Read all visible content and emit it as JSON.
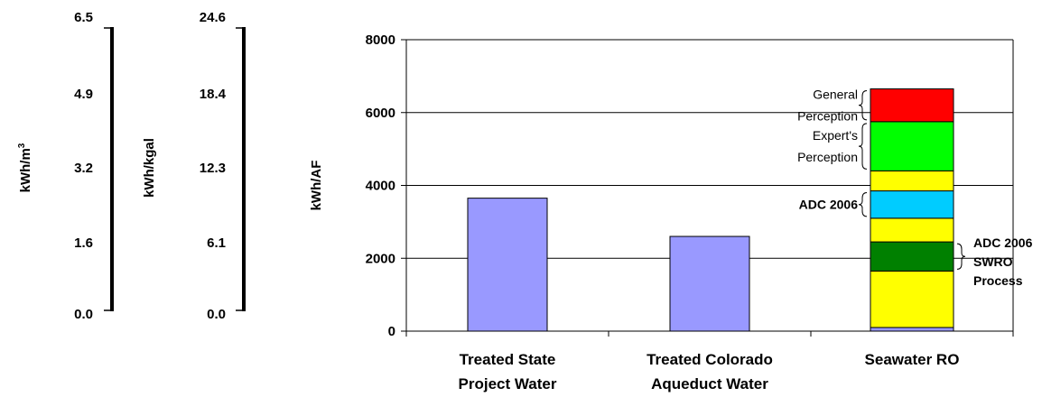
{
  "chart_data": {
    "type": "bar",
    "categories": [
      "Treated State Project Water",
      "Treated Colorado Aqueduct Water",
      "Seawater RO"
    ],
    "category_lines": [
      [
        "Treated State",
        "Project Water"
      ],
      [
        "Treated Colorado",
        "Aqueduct Water"
      ],
      [
        "Seawater RO"
      ]
    ],
    "ylabel": "kWh/AF",
    "ylim": [
      0,
      8000
    ],
    "yticks": [
      "0",
      "2000",
      "4000",
      "6000",
      "8000"
    ],
    "grid": true,
    "bars": [
      {
        "category": "Treated State Project Water",
        "value": 3650,
        "color": "#9999ff"
      },
      {
        "category": "Treated Colorado Aqueduct Water",
        "value": 2600,
        "color": "#9999ff"
      }
    ],
    "stacked_segments": [
      {
        "category": "Seawater RO",
        "from": 0,
        "to": 100,
        "color": "#9999ff"
      },
      {
        "category": "Seawater RO",
        "from": 100,
        "to": 1650,
        "color": "#ffff00"
      },
      {
        "category": "Seawater RO",
        "from": 1650,
        "to": 2450,
        "color": "#008000"
      },
      {
        "category": "Seawater RO",
        "from": 2450,
        "to": 3100,
        "color": "#ffff00"
      },
      {
        "category": "Seawater RO",
        "from": 3100,
        "to": 3850,
        "color": "#00ccff"
      },
      {
        "category": "Seawater RO",
        "from": 3850,
        "to": 4400,
        "color": "#ffff00"
      },
      {
        "category": "Seawater RO",
        "from": 4400,
        "to": 5750,
        "color": "#00ff00"
      },
      {
        "category": "Seawater RO",
        "from": 5750,
        "to": 6650,
        "color": "#ff0000"
      }
    ],
    "annotations": [
      {
        "lines": [
          "General",
          "Perception"
        ],
        "from": 5750,
        "to": 6650,
        "side": "left",
        "bold": false
      },
      {
        "lines": [
          "Expert's",
          "Perception"
        ],
        "from": 4400,
        "to": 5750,
        "side": "left",
        "bold": false
      },
      {
        "lines": [
          "ADC 2006"
        ],
        "from": 3100,
        "to": 3850,
        "side": "left",
        "bold": true
      },
      {
        "lines": [
          "ADC 2006",
          "SWRO",
          "Process"
        ],
        "from": 1650,
        "to": 2450,
        "side": "right",
        "bold": true
      }
    ],
    "secondary_axes": [
      {
        "label": "kWh/m",
        "label_sup": "3",
        "ticks": [
          "0.0",
          "1.6",
          "3.2",
          "4.9",
          "6.5"
        ]
      },
      {
        "label": "kWh/kgal",
        "ticks": [
          "0.0",
          "6.1",
          "12.3",
          "18.4",
          "24.6"
        ]
      }
    ]
  }
}
